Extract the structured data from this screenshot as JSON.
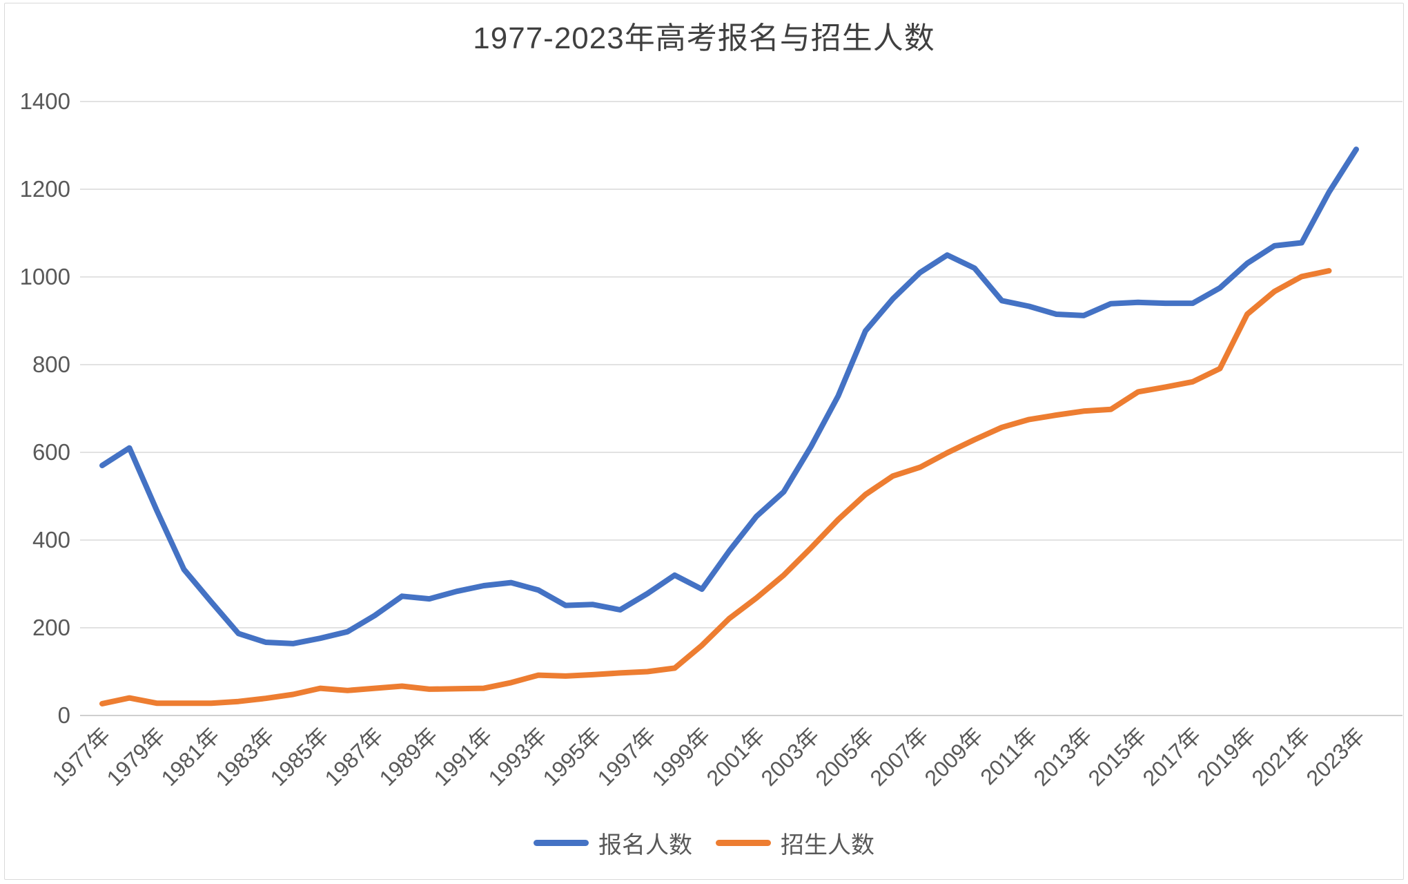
{
  "title": "1977-2023年高考报名与招生人数",
  "legend": {
    "items": [
      {
        "label": "报名人数",
        "color": "#4472C4"
      },
      {
        "label": "招生人数",
        "color": "#ED7D31"
      }
    ]
  },
  "colors": {
    "background": "#FFFFFF",
    "border": "#D9D9D9",
    "gridline": "#D9D9D9",
    "axis_line": "#BFBFBF",
    "tick_text": "#595959",
    "title_text": "#404040",
    "series_blue": "#4472C4",
    "series_orange": "#ED7D31"
  },
  "chart_data": {
    "type": "line",
    "title": "1977-2023年高考报名与招生人数",
    "x": [
      1977,
      1978,
      1979,
      1980,
      1981,
      1982,
      1983,
      1984,
      1985,
      1986,
      1987,
      1988,
      1989,
      1990,
      1991,
      1992,
      1993,
      1994,
      1995,
      1996,
      1997,
      1998,
      1999,
      2000,
      2001,
      2002,
      2003,
      2004,
      2005,
      2006,
      2007,
      2008,
      2009,
      2010,
      2011,
      2012,
      2013,
      2014,
      2015,
      2016,
      2017,
      2018,
      2019,
      2020,
      2021,
      2022,
      2023
    ],
    "xtick_step": 2,
    "xtick_suffix": "年",
    "ylim": [
      0,
      1400
    ],
    "ytick_step": 200,
    "yticks": [
      0,
      200,
      400,
      600,
      800,
      1000,
      1200,
      1400
    ],
    "grid": true,
    "legend_position": "bottom",
    "series": [
      {
        "name": "报名人数",
        "color": "#4472C4",
        "values": [
          570,
          610,
          468,
          333,
          259,
          187,
          167,
          164,
          176,
          191,
          228,
          272,
          266,
          283,
          296,
          303,
          286,
          251,
          253,
          241,
          278,
          320,
          288,
          375,
          454,
          510,
          613,
          729,
          877,
          950,
          1010,
          1050,
          1020,
          946,
          933,
          915,
          912,
          939,
          942,
          940,
          940,
          975,
          1031,
          1071,
          1078,
          1193,
          1291
        ]
      },
      {
        "name": "招生人数",
        "color": "#ED7D31",
        "values": [
          27,
          40,
          28,
          28,
          28,
          32,
          39,
          48,
          62,
          57,
          62,
          67,
          60,
          61,
          62,
          75,
          92,
          90,
          93,
          97,
          100,
          108,
          160,
          221,
          268,
          320,
          382,
          447,
          504,
          546,
          566,
          599,
          629,
          657,
          675,
          685,
          694,
          698,
          738,
          749,
          761,
          791,
          915,
          967,
          1001,
          1014,
          null
        ]
      }
    ]
  }
}
